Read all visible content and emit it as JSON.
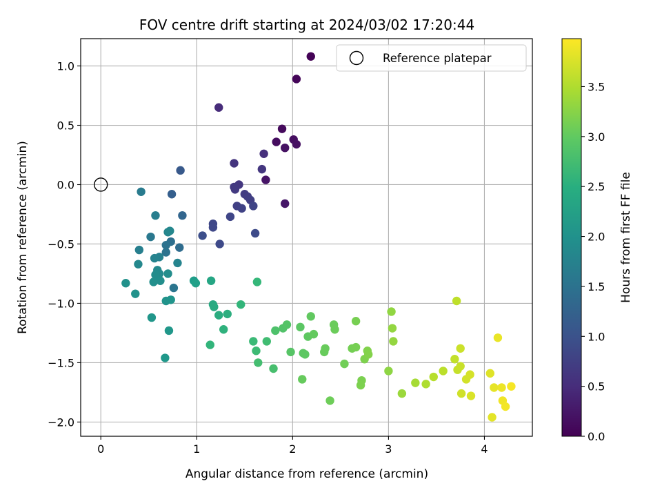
{
  "chart_data": {
    "type": "scatter",
    "title": "FOV centre drift starting at 2024/03/02 17:20:44",
    "xlabel": "Angular distance from reference (arcmin)",
    "ylabel": "Rotation from reference (arcmin)",
    "xlim": [
      -0.21,
      4.5
    ],
    "ylim": [
      -2.12,
      1.23
    ],
    "xticks": [
      0,
      1,
      2,
      3,
      4
    ],
    "yticks": [
      -2.0,
      -1.5,
      -1.0,
      -0.5,
      0.0,
      0.5,
      1.0
    ],
    "xtick_labels": [
      "0",
      "1",
      "2",
      "3",
      "4"
    ],
    "ytick_labels": [
      "−2.0",
      "−1.5",
      "−1.0",
      "−0.5",
      "0.0",
      "0.5",
      "1.0"
    ],
    "grid": true,
    "colormap": "viridis",
    "colorbar": {
      "label": "Hours from first FF file",
      "range": [
        0.0,
        3.98
      ],
      "ticks": [
        0.0,
        0.5,
        1.0,
        1.5,
        2.0,
        2.5,
        3.0,
        3.5
      ],
      "tick_labels": [
        "0.0",
        "0.5",
        "1.0",
        "1.5",
        "2.0",
        "2.5",
        "3.0",
        "3.5"
      ]
    },
    "legend": {
      "position": "top-right",
      "entries": [
        "Reference platepar"
      ]
    },
    "reference_point": {
      "name": "Reference platepar",
      "x": 0.0,
      "y": 0.0
    },
    "points": [
      [
        2.19,
        1.08,
        0.02
      ],
      [
        2.04,
        0.89,
        0.05
      ],
      [
        1.89,
        0.47,
        0.1
      ],
      [
        1.83,
        0.36,
        0.13
      ],
      [
        2.01,
        0.38,
        0.15
      ],
      [
        2.04,
        0.34,
        0.17
      ],
      [
        1.92,
        0.31,
        0.19
      ],
      [
        1.72,
        0.04,
        0.22
      ],
      [
        1.92,
        -0.16,
        0.25
      ],
      [
        1.23,
        0.65,
        0.5
      ],
      [
        1.7,
        0.26,
        0.55
      ],
      [
        1.39,
        0.18,
        0.6
      ],
      [
        1.68,
        0.13,
        0.62
      ],
      [
        1.44,
        0.0,
        0.64
      ],
      [
        1.39,
        -0.02,
        0.66
      ],
      [
        1.4,
        -0.04,
        0.68
      ],
      [
        1.5,
        -0.08,
        0.7
      ],
      [
        1.53,
        -0.1,
        0.72
      ],
      [
        1.56,
        -0.13,
        0.74
      ],
      [
        1.42,
        -0.18,
        0.76
      ],
      [
        1.47,
        -0.2,
        0.78
      ],
      [
        1.59,
        -0.18,
        0.8
      ],
      [
        1.35,
        -0.27,
        0.82
      ],
      [
        1.17,
        -0.33,
        0.84
      ],
      [
        1.17,
        -0.36,
        0.86
      ],
      [
        1.24,
        -0.5,
        0.88
      ],
      [
        1.61,
        -0.41,
        0.9
      ],
      [
        1.06,
        -0.43,
        0.95
      ],
      [
        0.83,
        0.12,
        1.1
      ],
      [
        0.74,
        -0.08,
        1.2
      ],
      [
        0.85,
        -0.26,
        1.3
      ],
      [
        0.82,
        -0.53,
        1.4
      ],
      [
        0.73,
        -0.48,
        1.45
      ],
      [
        0.68,
        -0.51,
        1.5
      ],
      [
        0.68,
        -0.57,
        1.52
      ],
      [
        0.76,
        -0.87,
        1.55
      ],
      [
        0.52,
        -0.44,
        1.6
      ],
      [
        0.42,
        -0.06,
        1.65
      ],
      [
        0.57,
        -0.26,
        1.7
      ],
      [
        0.4,
        -0.55,
        1.72
      ],
      [
        0.61,
        -0.61,
        1.75
      ],
      [
        0.56,
        -0.62,
        1.78
      ],
      [
        0.8,
        -0.66,
        1.8
      ],
      [
        0.7,
        -0.4,
        1.82
      ],
      [
        0.72,
        -0.39,
        1.84
      ],
      [
        0.39,
        -0.67,
        1.86
      ],
      [
        0.59,
        -0.72,
        1.88
      ],
      [
        0.61,
        -0.75,
        1.9
      ],
      [
        0.57,
        -0.76,
        1.92
      ],
      [
        0.7,
        -0.75,
        1.94
      ],
      [
        0.62,
        -0.81,
        1.96
      ],
      [
        0.55,
        -0.82,
        1.98
      ],
      [
        0.26,
        -0.83,
        2.0
      ],
      [
        0.36,
        -0.92,
        2.02
      ],
      [
        0.68,
        -0.98,
        2.04
      ],
      [
        0.73,
        -0.97,
        2.06
      ],
      [
        0.53,
        -1.12,
        2.08
      ],
      [
        0.71,
        -1.23,
        2.1
      ],
      [
        0.67,
        -1.46,
        2.12
      ],
      [
        0.97,
        -0.81,
        2.2
      ],
      [
        0.99,
        -0.83,
        2.25
      ],
      [
        1.15,
        -0.81,
        2.35
      ],
      [
        1.17,
        -1.01,
        2.4
      ],
      [
        1.18,
        -1.03,
        2.42
      ],
      [
        1.23,
        -1.1,
        2.45
      ],
      [
        1.32,
        -1.09,
        2.5
      ],
      [
        1.28,
        -1.22,
        2.55
      ],
      [
        1.14,
        -1.35,
        2.6
      ],
      [
        1.46,
        -1.01,
        2.62
      ],
      [
        1.63,
        -0.82,
        2.65
      ],
      [
        1.59,
        -1.32,
        2.7
      ],
      [
        1.62,
        -1.4,
        2.72
      ],
      [
        1.73,
        -1.32,
        2.75
      ],
      [
        1.64,
        -1.5,
        2.78
      ],
      [
        1.8,
        -1.55,
        2.8
      ],
      [
        1.82,
        -1.23,
        2.85
      ],
      [
        1.9,
        -1.21,
        2.88
      ],
      [
        1.94,
        -1.18,
        2.9
      ],
      [
        1.98,
        -1.41,
        2.92
      ],
      [
        2.08,
        -1.2,
        2.95
      ],
      [
        2.11,
        -1.42,
        2.96
      ],
      [
        2.13,
        -1.43,
        2.97
      ],
      [
        2.16,
        -1.28,
        2.98
      ],
      [
        2.19,
        -1.11,
        3.0
      ],
      [
        2.22,
        -1.26,
        3.02
      ],
      [
        2.1,
        -1.64,
        3.04
      ],
      [
        2.33,
        -1.41,
        3.05
      ],
      [
        2.34,
        -1.38,
        3.06
      ],
      [
        2.43,
        -1.18,
        3.07
      ],
      [
        2.44,
        -1.22,
        3.08
      ],
      [
        2.39,
        -1.82,
        3.1
      ],
      [
        2.54,
        -1.51,
        3.12
      ],
      [
        2.62,
        -1.38,
        3.14
      ],
      [
        2.66,
        -1.37,
        3.15
      ],
      [
        2.66,
        -1.15,
        3.16
      ],
      [
        2.72,
        -1.65,
        3.18
      ],
      [
        2.71,
        -1.69,
        3.19
      ],
      [
        2.75,
        -1.47,
        3.2
      ],
      [
        2.78,
        -1.4,
        3.22
      ],
      [
        2.79,
        -1.43,
        3.23
      ],
      [
        3.0,
        -1.57,
        3.3
      ],
      [
        3.03,
        -1.07,
        3.32
      ],
      [
        3.04,
        -1.21,
        3.33
      ],
      [
        3.05,
        -1.32,
        3.34
      ],
      [
        3.14,
        -1.76,
        3.38
      ],
      [
        3.28,
        -1.67,
        3.45
      ],
      [
        3.39,
        -1.68,
        3.5
      ],
      [
        3.47,
        -1.62,
        3.55
      ],
      [
        3.57,
        -1.57,
        3.58
      ],
      [
        3.71,
        -0.98,
        3.6
      ],
      [
        3.69,
        -1.47,
        3.62
      ],
      [
        3.72,
        -1.56,
        3.64
      ],
      [
        3.75,
        -1.53,
        3.66
      ],
      [
        3.75,
        -1.38,
        3.68
      ],
      [
        3.76,
        -1.76,
        3.7
      ],
      [
        3.81,
        -1.64,
        3.72
      ],
      [
        3.85,
        -1.6,
        3.74
      ],
      [
        3.86,
        -1.78,
        3.76
      ],
      [
        4.06,
        -1.59,
        3.8
      ],
      [
        4.08,
        -1.96,
        3.82
      ],
      [
        4.1,
        -1.71,
        3.84
      ],
      [
        4.14,
        -1.29,
        3.86
      ],
      [
        4.18,
        -1.71,
        3.88
      ],
      [
        4.19,
        -1.82,
        3.9
      ],
      [
        4.22,
        -1.87,
        3.92
      ],
      [
        4.28,
        -1.7,
        3.94
      ]
    ]
  }
}
